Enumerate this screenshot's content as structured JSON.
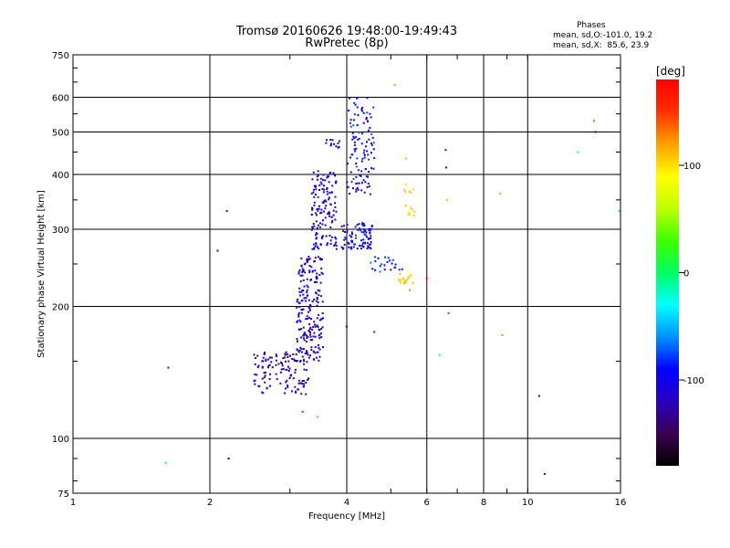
{
  "header": {
    "title_line1": "Tromsø 20160626 19:48:00-19:49:43",
    "title_line2": "RwPretec (8p)"
  },
  "phases_box": {
    "heading": "Phases",
    "o_line": "mean, sd,O:-101.0, 19.2",
    "x_line": "mean, sd,X:  85.6, 23.9"
  },
  "colorbar": {
    "label": "[deg]",
    "ticks": [
      {
        "value": 100,
        "label": "100"
      },
      {
        "value": 0,
        "label": "0"
      },
      {
        "value": -100,
        "label": "-100"
      }
    ],
    "range": [
      -180,
      180
    ],
    "colors": [
      "#000000",
      "#3a0050",
      "#2a00c0",
      "#0000ff",
      "#0090ff",
      "#00ffff",
      "#00ff60",
      "#40ff00",
      "#c0ff00",
      "#ffff00",
      "#ffa000",
      "#ff3000",
      "#ff0000"
    ]
  },
  "chart_data": {
    "type": "scatter",
    "title": "Tromsø 20160626 19:48:00-19:49:43",
    "subtitle": "RwPretec (8p)",
    "xlabel": "Frequency [MHz]",
    "ylabel": "Stationary phase Virtual Height [km]",
    "xscale": "log",
    "yscale": "log",
    "xlim": [
      1,
      16
    ],
    "ylim": [
      75,
      750
    ],
    "grid": true,
    "xticks": [
      {
        "value": 1,
        "label": "1"
      },
      {
        "value": 2,
        "label": "2"
      },
      {
        "value": 4,
        "label": "4"
      },
      {
        "value": 6,
        "label": "6"
      },
      {
        "value": 8,
        "label": "8"
      },
      {
        "value": 10,
        "label": "10"
      },
      {
        "value": 16,
        "label": "16"
      }
    ],
    "yticks": [
      {
        "value": 75,
        "label": "75"
      },
      {
        "value": 100,
        "label": "100"
      },
      {
        "value": 200,
        "label": "200"
      },
      {
        "value": 300,
        "label": "300"
      },
      {
        "value": 400,
        "label": "400"
      },
      {
        "value": 500,
        "label": "500"
      },
      {
        "value": 600,
        "label": "600"
      },
      {
        "value": 750,
        "label": "750"
      }
    ],
    "color_by": "phase [deg]",
    "clusters": [
      {
        "x": [
          2.5,
          3.3
        ],
        "y": [
          125,
          160
        ],
        "phase": [
          -150,
          -95
        ],
        "count": 130
      },
      {
        "x": [
          3.1,
          3.55
        ],
        "y": [
          150,
          260
        ],
        "phase": [
          -145,
          -85
        ],
        "count": 200
      },
      {
        "x": [
          3.35,
          3.8
        ],
        "y": [
          270,
          410
        ],
        "phase": [
          -135,
          -80
        ],
        "count": 140
      },
      {
        "x": [
          3.6,
          3.9
        ],
        "y": [
          460,
          480
        ],
        "phase": [
          -130,
          -100
        ],
        "count": 12
      },
      {
        "x": [
          3.9,
          4.55
        ],
        "y": [
          270,
          310
        ],
        "phase": [
          -125,
          -75
        ],
        "count": 90
      },
      {
        "x": [
          4.0,
          4.6
        ],
        "y": [
          360,
          600
        ],
        "phase": [
          -125,
          -70
        ],
        "count": 110
      },
      {
        "x": [
          4.5,
          5.3
        ],
        "y": [
          240,
          260
        ],
        "phase": [
          -115,
          -60
        ],
        "count": 25
      },
      {
        "x": [
          5.2,
          5.6
        ],
        "y": [
          225,
          240
        ],
        "phase": [
          95,
          115
        ],
        "count": 20
      },
      {
        "x": [
          5.3,
          5.75
        ],
        "y": [
          320,
          380
        ],
        "phase": [
          95,
          115
        ],
        "count": 15
      }
    ],
    "points": [
      {
        "x": 1.6,
        "y": 88,
        "phase": -20
      },
      {
        "x": 1.62,
        "y": 145,
        "phase": -120
      },
      {
        "x": 2.08,
        "y": 268,
        "phase": -110
      },
      {
        "x": 2.18,
        "y": 330,
        "phase": -130
      },
      {
        "x": 2.2,
        "y": 90,
        "phase": -160
      },
      {
        "x": 3.2,
        "y": 115,
        "phase": 160
      },
      {
        "x": 3.45,
        "y": 112,
        "phase": 20
      },
      {
        "x": 4.0,
        "y": 180,
        "phase": -90
      },
      {
        "x": 4.6,
        "y": 175,
        "phase": -80
      },
      {
        "x": 5.1,
        "y": 640,
        "phase": 125
      },
      {
        "x": 5.4,
        "y": 435,
        "phase": 40
      },
      {
        "x": 5.5,
        "y": 218,
        "phase": 130
      },
      {
        "x": 6.0,
        "y": 232,
        "phase": 170
      },
      {
        "x": 6.4,
        "y": 155,
        "phase": -20
      },
      {
        "x": 6.6,
        "y": 455,
        "phase": -110
      },
      {
        "x": 6.62,
        "y": 415,
        "phase": -115
      },
      {
        "x": 6.65,
        "y": 350,
        "phase": 110
      },
      {
        "x": 6.7,
        "y": 193,
        "phase": 150
      },
      {
        "x": 8.7,
        "y": 362,
        "phase": 120
      },
      {
        "x": 8.8,
        "y": 172,
        "phase": 125
      },
      {
        "x": 10.6,
        "y": 125,
        "phase": -140
      },
      {
        "x": 10.9,
        "y": 83,
        "phase": -110
      },
      {
        "x": 12.9,
        "y": 450,
        "phase": -20
      },
      {
        "x": 14.0,
        "y": 530,
        "phase": 140
      },
      {
        "x": 14.1,
        "y": 500,
        "phase": -130
      },
      {
        "x": 15.9,
        "y": 330,
        "phase": -40
      }
    ]
  }
}
